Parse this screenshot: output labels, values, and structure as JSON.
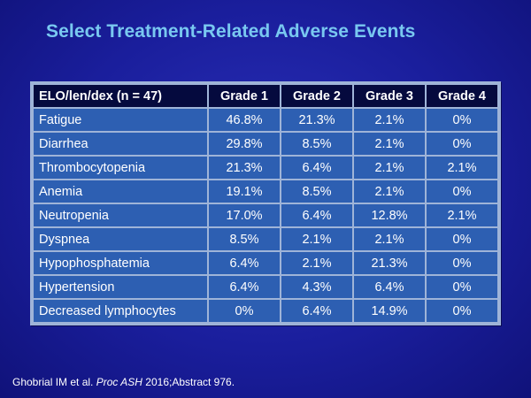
{
  "slide": {
    "title": "Select Treatment-Related Adverse Events"
  },
  "table": {
    "headers": [
      "ELO/len/dex (n = 47)",
      "Grade 1",
      "Grade 2",
      "Grade 3",
      "Grade 4"
    ],
    "rows": [
      [
        "Fatigue",
        "46.8%",
        "21.3%",
        "2.1%",
        "0%"
      ],
      [
        "Diarrhea",
        "29.8%",
        "8.5%",
        "2.1%",
        "0%"
      ],
      [
        "Thrombocytopenia",
        "21.3%",
        "6.4%",
        "2.1%",
        "2.1%"
      ],
      [
        "Anemia",
        "19.1%",
        "8.5%",
        "2.1%",
        "0%"
      ],
      [
        "Neutropenia",
        "17.0%",
        "6.4%",
        "12.8%",
        "2.1%"
      ],
      [
        "Dyspnea",
        "8.5%",
        "2.1%",
        "2.1%",
        "0%"
      ],
      [
        "Hypophosphatemia",
        "6.4%",
        "2.1%",
        "21.3%",
        "0%"
      ],
      [
        "Hypertension",
        "6.4%",
        "4.3%",
        "6.4%",
        "0%"
      ],
      [
        "Decreased lymphocytes",
        "0%",
        "6.4%",
        "14.9%",
        "0%"
      ]
    ]
  },
  "citation": {
    "authors": "Ghobrial IM et al. ",
    "journal": "Proc ASH",
    "rest": " 2016;Abstract 976."
  },
  "colors": {
    "background": "#1a1e9c",
    "title": "#79c8f0",
    "header_fill": "#050a3e",
    "cell_fill": "#2d5fb2",
    "grid_lines": "#9fb4d8"
  }
}
